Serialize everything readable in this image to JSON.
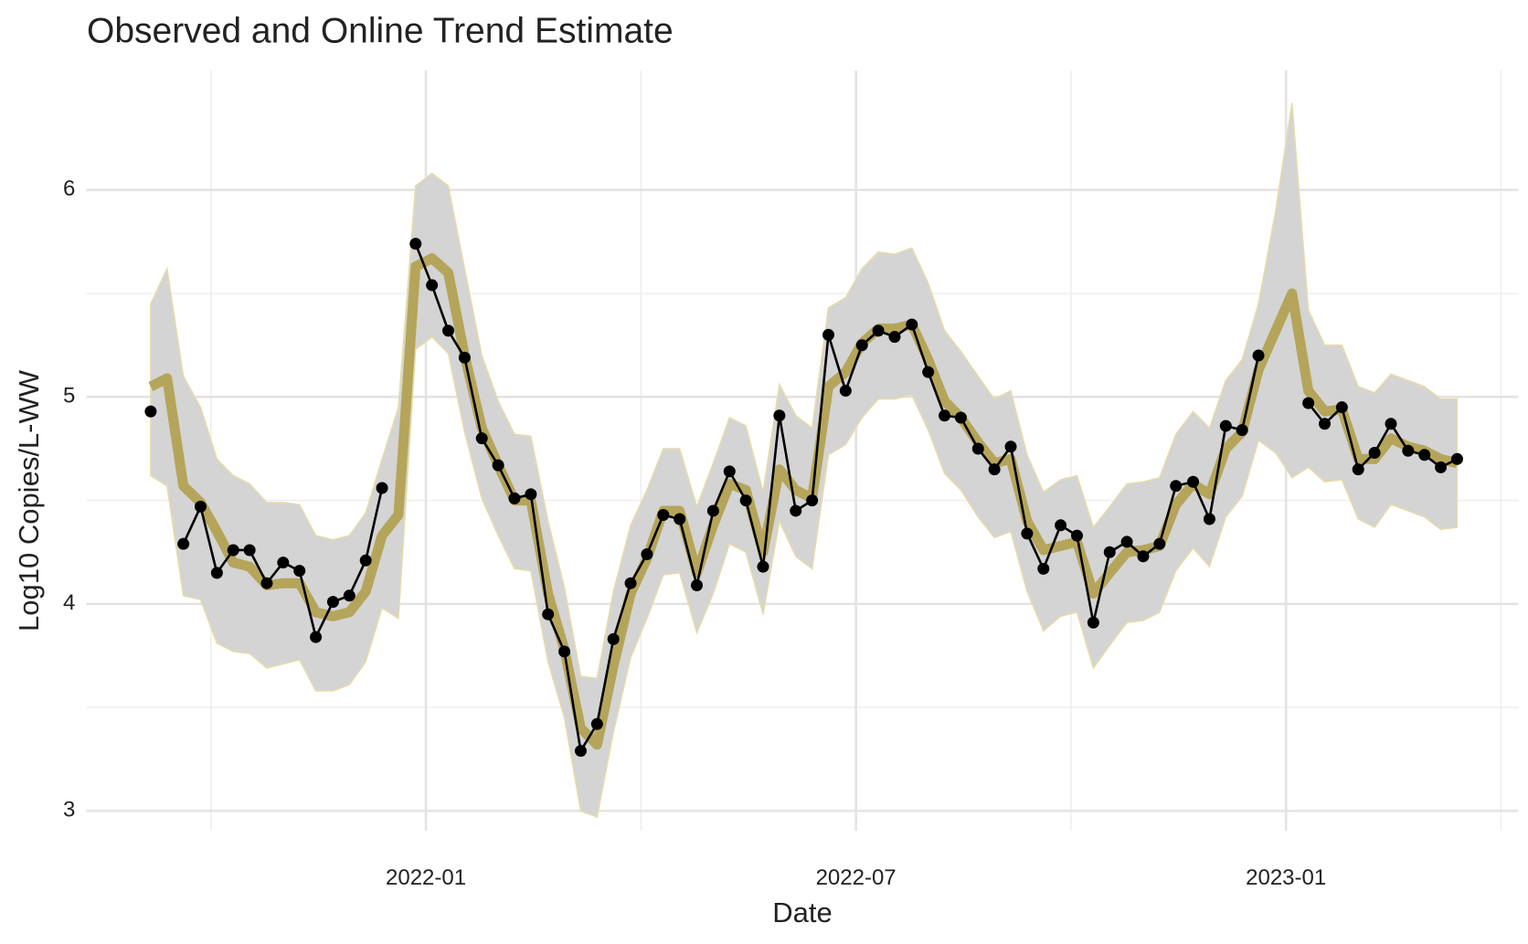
{
  "chart_data": {
    "type": "line",
    "title": "Observed and Online Trend Estimate",
    "x_label": "Date",
    "y_label": "Log10 Copies/L-WW",
    "xlim": [
      2021.605,
      2023.27
    ],
    "ylim": [
      2.905,
      6.577
    ],
    "xticks": [
      {
        "value": 2022.0,
        "label": "2022-01"
      },
      {
        "value": 2022.5,
        "label": "2022-07"
      },
      {
        "value": 2023.0,
        "label": "2023-01"
      }
    ],
    "yticks": [
      3,
      4,
      5,
      6
    ],
    "x_minor_grid": [
      2021.75,
      2022.25,
      2022.75,
      2023.25
    ],
    "y_minor_grid": [
      3.5,
      4.5,
      5.5
    ],
    "grid": true,
    "x": [
      2021.68,
      2021.699,
      2021.718,
      2021.738,
      2021.757,
      2021.776,
      2021.795,
      2021.815,
      2021.834,
      2021.853,
      2021.872,
      2021.892,
      2021.911,
      2021.93,
      2021.949,
      2021.968,
      2021.988,
      2022.007,
      2022.026,
      2022.045,
      2022.065,
      2022.084,
      2022.103,
      2022.122,
      2022.142,
      2022.161,
      2022.18,
      2022.199,
      2022.218,
      2022.238,
      2022.257,
      2022.276,
      2022.295,
      2022.315,
      2022.334,
      2022.353,
      2022.372,
      2022.392,
      2022.411,
      2022.43,
      2022.449,
      2022.468,
      2022.488,
      2022.507,
      2022.526,
      2022.545,
      2022.565,
      2022.584,
      2022.603,
      2022.622,
      2022.642,
      2022.661,
      2022.68,
      2022.699,
      2022.718,
      2022.738,
      2022.757,
      2022.776,
      2022.795,
      2022.815,
      2022.834,
      2022.853,
      2022.872,
      2022.892,
      2022.911,
      2022.93,
      2022.949,
      2022.968,
      2022.988,
      2023.007,
      2023.026,
      2023.045,
      2023.065,
      2023.084,
      2023.103,
      2023.122,
      2023.142,
      2023.161,
      2023.18,
      2023.199
    ],
    "band": {
      "color": "#d4d4d4",
      "edge_color": "#e6dca8",
      "upper": [
        5.45,
        5.62,
        5.1,
        4.95,
        4.7,
        4.62,
        4.58,
        4.49,
        4.49,
        4.48,
        4.33,
        4.31,
        4.33,
        4.44,
        4.7,
        4.95,
        6.02,
        6.08,
        6.02,
        5.62,
        5.2,
        4.98,
        4.82,
        4.81,
        4.4,
        4.08,
        3.65,
        3.64,
        4.06,
        4.38,
        4.55,
        4.75,
        4.75,
        4.47,
        4.68,
        4.9,
        4.86,
        4.54,
        5.06,
        4.91,
        4.85,
        5.43,
        5.48,
        5.62,
        5.7,
        5.69,
        5.72,
        5.55,
        5.32,
        5.22,
        5.1,
        4.99,
        5.03,
        4.72,
        4.54,
        4.6,
        4.62,
        4.37,
        4.47,
        4.58,
        4.59,
        4.61,
        4.82,
        4.93,
        4.85,
        5.08,
        5.18,
        5.45,
        5.9,
        6.42,
        5.42,
        5.25,
        5.25,
        5.05,
        5.02,
        5.11,
        5.08,
        5.05,
        4.99,
        4.99
      ],
      "lower": [
        4.62,
        4.57,
        4.04,
        4.02,
        3.81,
        3.77,
        3.76,
        3.69,
        3.71,
        3.73,
        3.58,
        3.58,
        3.61,
        3.72,
        3.98,
        3.93,
        5.23,
        5.29,
        5.21,
        4.83,
        4.51,
        4.33,
        4.17,
        4.16,
        3.72,
        3.45,
        3.0,
        2.97,
        3.38,
        3.74,
        3.93,
        4.14,
        4.15,
        3.86,
        4.05,
        4.29,
        4.25,
        3.95,
        4.4,
        4.23,
        4.17,
        4.72,
        4.77,
        4.9,
        4.99,
        4.99,
        5.01,
        4.84,
        4.63,
        4.55,
        4.42,
        4.32,
        4.35,
        4.06,
        3.87,
        3.94,
        3.96,
        3.69,
        3.8,
        3.91,
        3.92,
        3.96,
        4.16,
        4.27,
        4.18,
        4.42,
        4.52,
        4.79,
        4.73,
        4.61,
        4.66,
        4.59,
        4.6,
        4.41,
        4.37,
        4.48,
        4.45,
        4.42,
        4.36,
        4.37
      ]
    },
    "trend": {
      "color": "#b5a55a",
      "values": [
        5.05,
        5.09,
        4.57,
        4.49,
        4.35,
        4.2,
        4.18,
        4.09,
        4.1,
        4.1,
        3.96,
        3.94,
        3.96,
        4.06,
        4.33,
        4.43,
        5.63,
        5.67,
        5.6,
        5.2,
        4.85,
        4.67,
        4.5,
        4.5,
        4.05,
        3.78,
        3.4,
        3.32,
        3.7,
        4.05,
        4.22,
        4.45,
        4.45,
        4.15,
        4.38,
        4.58,
        4.55,
        4.25,
        4.65,
        4.55,
        4.51,
        5.05,
        5.12,
        5.26,
        5.33,
        5.33,
        5.35,
        5.18,
        4.98,
        4.9,
        4.78,
        4.68,
        4.7,
        4.4,
        4.26,
        4.28,
        4.3,
        4.05,
        4.15,
        4.25,
        4.26,
        4.28,
        4.48,
        4.58,
        4.53,
        4.75,
        4.83,
        5.13,
        5.32,
        5.5,
        5.03,
        4.93,
        4.94,
        4.7,
        4.7,
        4.8,
        4.76,
        4.74,
        4.7,
        4.68
      ]
    },
    "observed": {
      "color": "#000000",
      "values": [
        4.93,
        null,
        4.29,
        4.47,
        4.15,
        4.26,
        4.26,
        4.1,
        4.2,
        4.16,
        3.84,
        4.01,
        4.04,
        4.21,
        4.56,
        null,
        5.74,
        5.54,
        5.32,
        5.19,
        4.8,
        4.67,
        4.51,
        4.53,
        3.95,
        3.77,
        3.29,
        3.42,
        3.83,
        4.1,
        4.24,
        4.43,
        4.41,
        4.09,
        4.45,
        4.64,
        4.5,
        4.18,
        4.91,
        4.45,
        4.5,
        5.3,
        5.03,
        5.25,
        5.32,
        5.29,
        5.35,
        5.12,
        4.91,
        4.9,
        4.75,
        4.65,
        4.76,
        4.34,
        4.17,
        4.38,
        4.33,
        3.91,
        4.25,
        4.3,
        4.23,
        4.29,
        4.57,
        4.59,
        4.41,
        4.86,
        4.84,
        5.2,
        null,
        null,
        4.97,
        4.87,
        4.95,
        4.65,
        4.73,
        4.87,
        4.74,
        4.72,
        4.66,
        4.7
      ]
    }
  }
}
